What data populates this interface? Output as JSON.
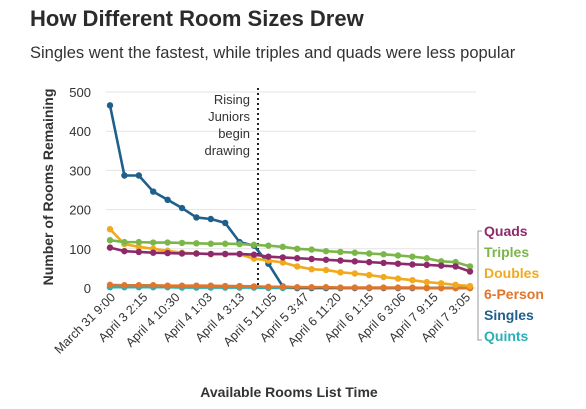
{
  "title": "How Different Room Sizes Drew",
  "subtitle": "Singles went the fastest, while triples and quads were less popular",
  "chart_data": {
    "type": "line",
    "xlabel": "Available Rooms List Time",
    "ylabel": "Number of Rooms Remaining",
    "ylim": [
      0,
      500
    ],
    "yticks": [
      0,
      100,
      200,
      300,
      400,
      500
    ],
    "grid": true,
    "x_tick_labels": [
      "March 31 9:00",
      "April 3 2:15",
      "April 4 10:30",
      "April 4 1:03",
      "April 4 3:13",
      "April 5 11:05",
      "April 5 3:47",
      "April 6 11:20",
      "April 6 1:15",
      "April 6 3:06",
      "April 7 9:15",
      "April 7 3:05"
    ],
    "annotation": {
      "text": [
        "Rising",
        "Juniors",
        "begin",
        "drawing"
      ]
    },
    "legend_position": "right",
    "series": [
      {
        "name": "Quads",
        "color": "#8e2a6b",
        "values": [
          103,
          94,
          92,
          90,
          89,
          88,
          88,
          87,
          87,
          87,
          85,
          80,
          78,
          76,
          74,
          72,
          70,
          68,
          66,
          64,
          62,
          60,
          59,
          57,
          55,
          42
        ]
      },
      {
        "name": "Triples",
        "color": "#7ab648",
        "values": [
          122,
          117,
          117,
          116,
          116,
          115,
          114,
          113,
          113,
          112,
          110,
          108,
          105,
          100,
          98,
          94,
          92,
          90,
          88,
          86,
          83,
          80,
          76,
          68,
          66,
          55
        ]
      },
      {
        "name": "Doubles",
        "color": "#f1a91e",
        "values": [
          150,
          112,
          105,
          100,
          95,
          90,
          88,
          86,
          86,
          86,
          75,
          70,
          65,
          55,
          48,
          46,
          40,
          37,
          33,
          28,
          24,
          20,
          15,
          12,
          8,
          5
        ]
      },
      {
        "name": "6-Person",
        "color": "#e0762b",
        "values": [
          8,
          7,
          7,
          7,
          6,
          6,
          6,
          6,
          5,
          5,
          4,
          3,
          3,
          2,
          2,
          2,
          1,
          1,
          1,
          1,
          1,
          1,
          0,
          0,
          0,
          0
        ]
      },
      {
        "name": "Singles",
        "color": "#1e5f8c",
        "values": [
          466,
          287,
          287,
          246,
          225,
          204,
          180,
          176,
          166,
          117,
          108,
          62,
          4,
          0,
          0,
          0,
          0,
          0,
          0,
          0,
          0,
          0,
          0,
          0,
          0,
          0
        ]
      },
      {
        "name": "Quints",
        "color": "#2ab0b8",
        "values": [
          2,
          2,
          2,
          2,
          2,
          1,
          1,
          1,
          1,
          1,
          1,
          0,
          0,
          0,
          0,
          0,
          0,
          0,
          0,
          0,
          0,
          0,
          0,
          0,
          0,
          0
        ]
      }
    ]
  }
}
